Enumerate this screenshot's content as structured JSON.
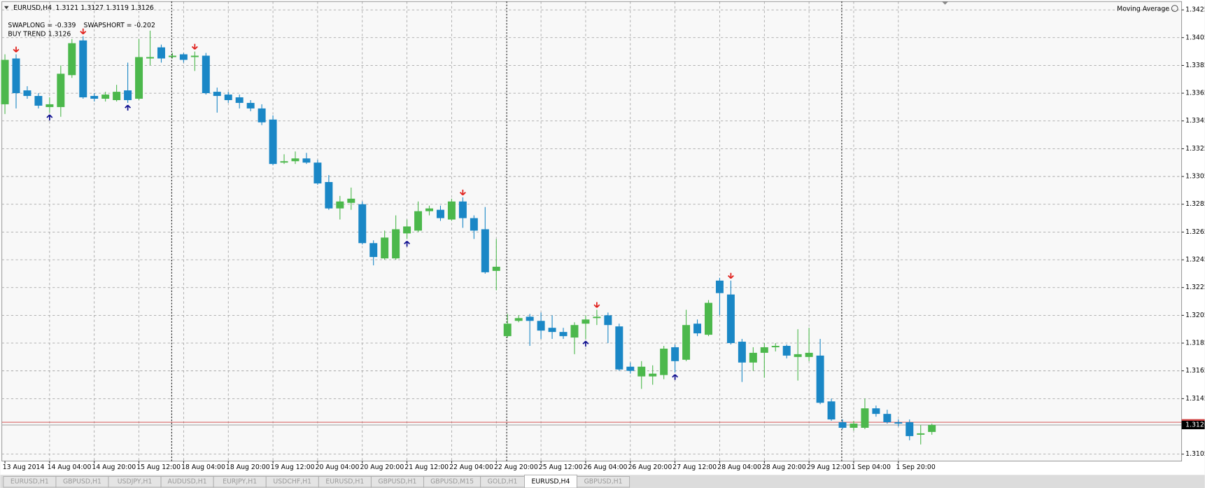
{
  "chart_data": {
    "type": "candlestick",
    "title": "EURUSD,H4",
    "header_ohlc": [
      1.3121,
      1.3127,
      1.3119,
      1.3126
    ],
    "annotations": [
      {
        "label": "SWAPLONG =",
        "value": -0.339
      },
      {
        "label": "SWAPSHORT =",
        "value": -0.202
      },
      {
        "label": "BUY TREND",
        "value": 1.3126
      }
    ],
    "indicator": "Moving Average",
    "categories": [
      "13 Aug 2014",
      null,
      null,
      null,
      "14 Aug 04:00",
      null,
      null,
      null,
      "14 Aug 20:00",
      null,
      null,
      null,
      "15 Aug 12:00",
      null,
      null,
      null,
      "18 Aug 04:00",
      null,
      null,
      null,
      "18 Aug 20:00",
      null,
      null,
      null,
      "19 Aug 12:00",
      null,
      null,
      null,
      "20 Aug 04:00",
      null,
      null,
      null,
      "20 Aug 20:00",
      null,
      null,
      null,
      "21 Aug 12:00",
      null,
      null,
      null,
      "22 Aug 04:00",
      null,
      null,
      null,
      "22 Aug 20:00",
      null,
      null,
      null,
      "25 Aug 12:00",
      null,
      null,
      null,
      "26 Aug 04:00",
      null,
      null,
      null,
      "26 Aug 20:00",
      null,
      null,
      null,
      "27 Aug 12:00",
      null,
      null,
      null,
      "28 Aug 04:00",
      null,
      null,
      null,
      "28 Aug 20:00",
      null,
      null,
      null,
      "29 Aug 12:00",
      null,
      null,
      null,
      "1 Sep 04:00",
      null,
      null,
      null,
      "1 Sep 20:00",
      null,
      null,
      null
    ],
    "open": [
      1.3357,
      1.339,
      1.3367,
      1.3363,
      1.3355,
      1.3355,
      1.3378,
      1.3403,
      1.3363,
      1.3361,
      1.336,
      1.3367,
      1.3361,
      1.339,
      1.3398,
      1.3391,
      1.3393,
      1.3391,
      1.3392,
      1.3366,
      1.3364,
      1.3362,
      1.3358,
      1.3354,
      1.3346,
      1.3315,
      1.3316,
      1.3318,
      1.3315,
      1.3301,
      1.3282,
      1.3286,
      1.3285,
      1.3257,
      1.3246,
      1.3246,
      1.3264,
      1.3266,
      1.328,
      1.3281,
      1.3274,
      1.3287,
      1.3275,
      1.3267,
      1.3237,
      1.319,
      1.3201,
      1.3204,
      1.3201,
      1.3196,
      1.3193,
      1.3189,
      1.3199,
      1.3203,
      1.3205,
      1.3197,
      1.3168,
      1.3161,
      1.3161,
      1.3162,
      1.3182,
      1.3173,
      1.3199,
      1.3191,
      1.323,
      1.322,
      1.3186,
      1.3171,
      1.3178,
      1.3182,
      1.3183,
      1.3175,
      1.3175,
      1.3176,
      1.3143,
      1.3128,
      1.3124,
      1.3124,
      1.3138,
      1.3134,
      1.3128,
      1.3128,
      1.3119,
      1.3121
    ],
    "high": [
      1.3393,
      1.3393,
      1.337,
      1.3365,
      1.3362,
      1.3385,
      1.3404,
      1.3406,
      1.3365,
      1.3366,
      1.3371,
      1.3387,
      1.3404,
      1.341,
      1.34,
      1.3394,
      1.3394,
      1.3395,
      1.3394,
      1.3369,
      1.3366,
      1.3364,
      1.336,
      1.3357,
      1.3349,
      1.3321,
      1.3323,
      1.3322,
      1.3317,
      1.3306,
      1.3291,
      1.3297,
      1.3287,
      1.3259,
      1.3266,
      1.3277,
      1.3274,
      1.3287,
      1.3284,
      1.3284,
      1.3289,
      1.329,
      1.3277,
      1.3283,
      1.326,
      1.3206,
      1.3205,
      1.3206,
      1.3207,
      1.3205,
      1.3196,
      1.32,
      1.3205,
      1.3209,
      1.3207,
      1.3199,
      1.3171,
      1.3172,
      1.3169,
      1.3183,
      1.3184,
      1.3209,
      1.3202,
      1.3216,
      1.3232,
      1.323,
      1.3188,
      1.3182,
      1.3185,
      1.3185,
      1.3184,
      1.3195,
      1.3196,
      1.3188,
      1.3145,
      1.313,
      1.3129,
      1.3145,
      1.314,
      1.3137,
      1.313,
      1.313,
      1.3126,
      1.3127
    ],
    "low": [
      1.335,
      1.3354,
      1.3361,
      1.3354,
      1.3351,
      1.3348,
      1.3376,
      1.3361,
      1.3359,
      1.3359,
      1.3359,
      1.3358,
      1.336,
      1.3385,
      1.3387,
      1.339,
      1.3387,
      1.3381,
      1.3364,
      1.3351,
      1.3358,
      1.3354,
      1.3352,
      1.3342,
      1.3313,
      1.3314,
      1.3314,
      1.3314,
      1.3299,
      1.3281,
      1.3274,
      1.3281,
      1.3256,
      1.3241,
      1.3245,
      1.3245,
      1.326,
      1.3265,
      1.3277,
      1.3273,
      1.3273,
      1.3268,
      1.326,
      1.3235,
      1.3223,
      1.3189,
      1.32,
      1.3183,
      1.3188,
      1.3188,
      1.3188,
      1.3177,
      1.3188,
      1.3198,
      1.3185,
      1.3165,
      1.3163,
      1.3152,
      1.3155,
      1.3159,
      1.3164,
      1.3172,
      1.319,
      1.319,
      1.3205,
      1.3184,
      1.3157,
      1.3165,
      1.316,
      1.3179,
      1.3174,
      1.3158,
      1.3172,
      1.3141,
      1.3129,
      1.3123,
      1.3122,
      1.3123,
      1.3132,
      1.3127,
      1.3125,
      1.3115,
      1.3112,
      1.3119
    ],
    "close": [
      1.3389,
      1.3365,
      1.3363,
      1.3356,
      1.3357,
      1.3379,
      1.3401,
      1.3362,
      1.3361,
      1.3364,
      1.3366,
      1.336,
      1.3391,
      1.3391,
      1.339,
      1.3392,
      1.3389,
      1.3392,
      1.3365,
      1.3363,
      1.336,
      1.3358,
      1.3354,
      1.3344,
      1.3314,
      1.3316,
      1.3318,
      1.3315,
      1.33,
      1.3282,
      1.3287,
      1.3289,
      1.3257,
      1.3247,
      1.3261,
      1.3267,
      1.3269,
      1.328,
      1.3282,
      1.3275,
      1.3287,
      1.3275,
      1.3266,
      1.3236,
      1.324,
      1.3199,
      1.3203,
      1.3201,
      1.3194,
      1.3193,
      1.319,
      1.3198,
      1.3202,
      1.3204,
      1.3198,
      1.3166,
      1.3165,
      1.3168,
      1.3163,
      1.3181,
      1.3172,
      1.3198,
      1.3192,
      1.3214,
      1.3221,
      1.3185,
      1.3171,
      1.3178,
      1.3182,
      1.3183,
      1.3176,
      1.3177,
      1.3178,
      1.3142,
      1.313,
      1.3124,
      1.3127,
      1.3138,
      1.3134,
      1.3128,
      1.3127,
      1.3118,
      1.312,
      1.3126
    ],
    "up_color": "#4cb84c",
    "down_color": "#1a87c6",
    "sell_signals": [
      1,
      7,
      17,
      41,
      53,
      65
    ],
    "buy_signals": [
      4,
      11,
      36,
      52,
      60
    ],
    "sell_color": "#e0201c",
    "buy_color": "#101090",
    "separators": [
      15,
      45,
      75
    ],
    "ask": 1.3128,
    "ask_color": "#d04040",
    "bid": 1.3126,
    "ylim": [
      1.31,
      1.3431
    ],
    "yticks": [
      1.3425,
      1.3405,
      1.3385,
      1.3365,
      1.3345,
      1.3325,
      1.3305,
      1.3285,
      1.3265,
      1.3245,
      1.3225,
      1.3205,
      1.3185,
      1.3165,
      1.3145,
      1.3105
    ],
    "grid": true
  },
  "tabs": [
    "EURUSD,H1",
    "GBPUSD,H1",
    "USDJPY,H1",
    "AUDUSD,H1",
    "EURJPY,H1",
    "USDCHF,H1",
    "EURUSD,H1",
    "GBPUSD,H1",
    "GBPUSD,M15",
    "GOLD,H1",
    "EURUSD,H4",
    "GBPUSD,H1"
  ],
  "active_tab": 10
}
